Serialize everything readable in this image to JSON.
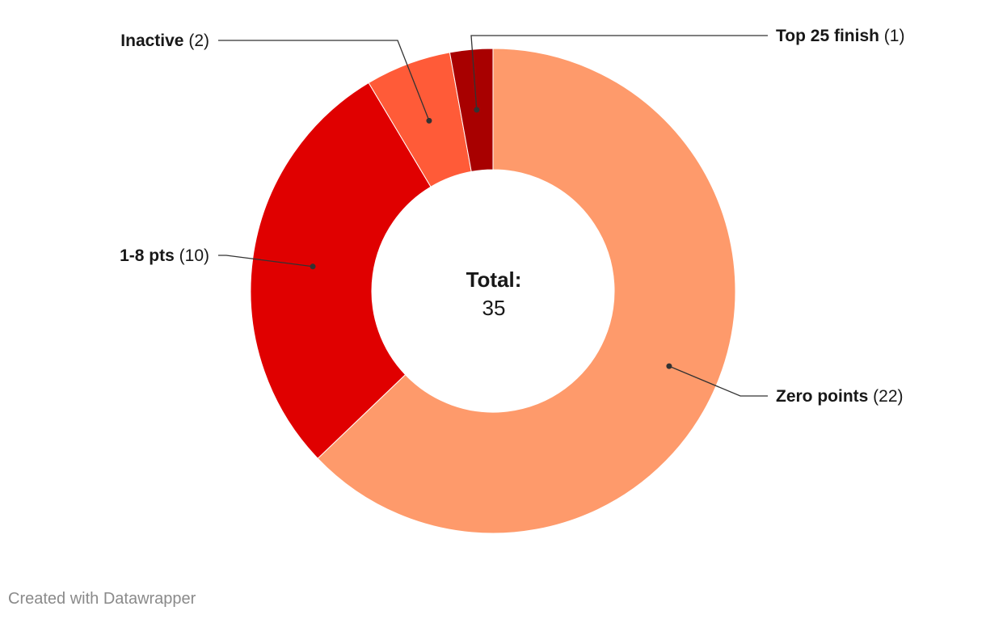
{
  "chart_data": {
    "type": "donut",
    "start_angle_deg": 0,
    "direction": "clockwise",
    "slices": [
      {
        "label": "Zero points",
        "value": 22,
        "count_text": "(22)",
        "color": "#fe9a6b"
      },
      {
        "label": "1-8 pts",
        "value": 10,
        "count_text": "(10)",
        "color": "#e00000"
      },
      {
        "label": "Inactive",
        "value": 2,
        "count_text": "(2)",
        "color": "#ff5b38"
      },
      {
        "label": "Top 25 finish",
        "value": 1,
        "count_text": "(1)",
        "color": "#a80000"
      }
    ],
    "center": {
      "title": "Total:",
      "value": "35"
    }
  },
  "footer": {
    "credit": "Created with Datawrapper"
  }
}
